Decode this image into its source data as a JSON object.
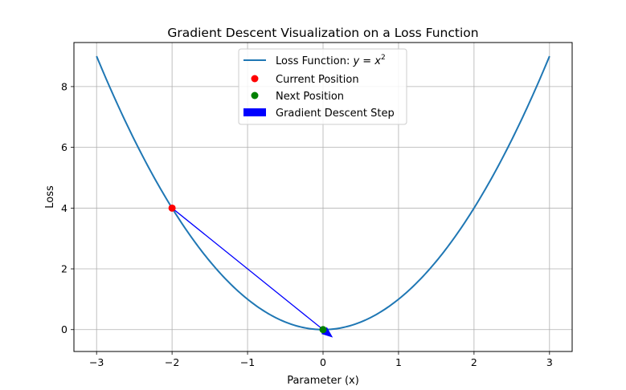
{
  "chart_data": {
    "type": "line",
    "title": "Gradient Descent Visualization on a Loss Function",
    "xlabel": "Parameter (x)",
    "ylabel": "Loss",
    "xlim": [
      -3.3,
      3.3
    ],
    "ylim": [
      -0.72,
      9.45
    ],
    "xticks": [
      -3,
      -2,
      -1,
      0,
      1,
      2,
      3
    ],
    "xtick_labels": [
      "−3",
      "−2",
      "−1",
      "0",
      "1",
      "2",
      "3"
    ],
    "yticks": [
      0,
      2,
      4,
      6,
      8
    ],
    "ytick_labels": [
      "0",
      "2",
      "4",
      "6",
      "8"
    ],
    "grid": true,
    "legend_position": "top-center",
    "series": [
      {
        "kind": "curve",
        "name": "Loss Function: y = x²",
        "legend_main": "Loss Function: ",
        "legend_math": "y = x",
        "legend_sup": "2",
        "function": "x^2",
        "x_range": [
          -3,
          3
        ],
        "color": "#1f77b4"
      },
      {
        "kind": "point",
        "name": "Current Position",
        "x": -2,
        "y": 4,
        "color": "#ff0000"
      },
      {
        "kind": "point",
        "name": "Next Position",
        "x": 0,
        "y": 0,
        "color": "#008000"
      },
      {
        "kind": "arrow",
        "name": "Gradient Descent Step",
        "from": [
          -2,
          4
        ],
        "to": [
          0.13,
          -0.26
        ],
        "color": "#0000ff"
      }
    ]
  }
}
